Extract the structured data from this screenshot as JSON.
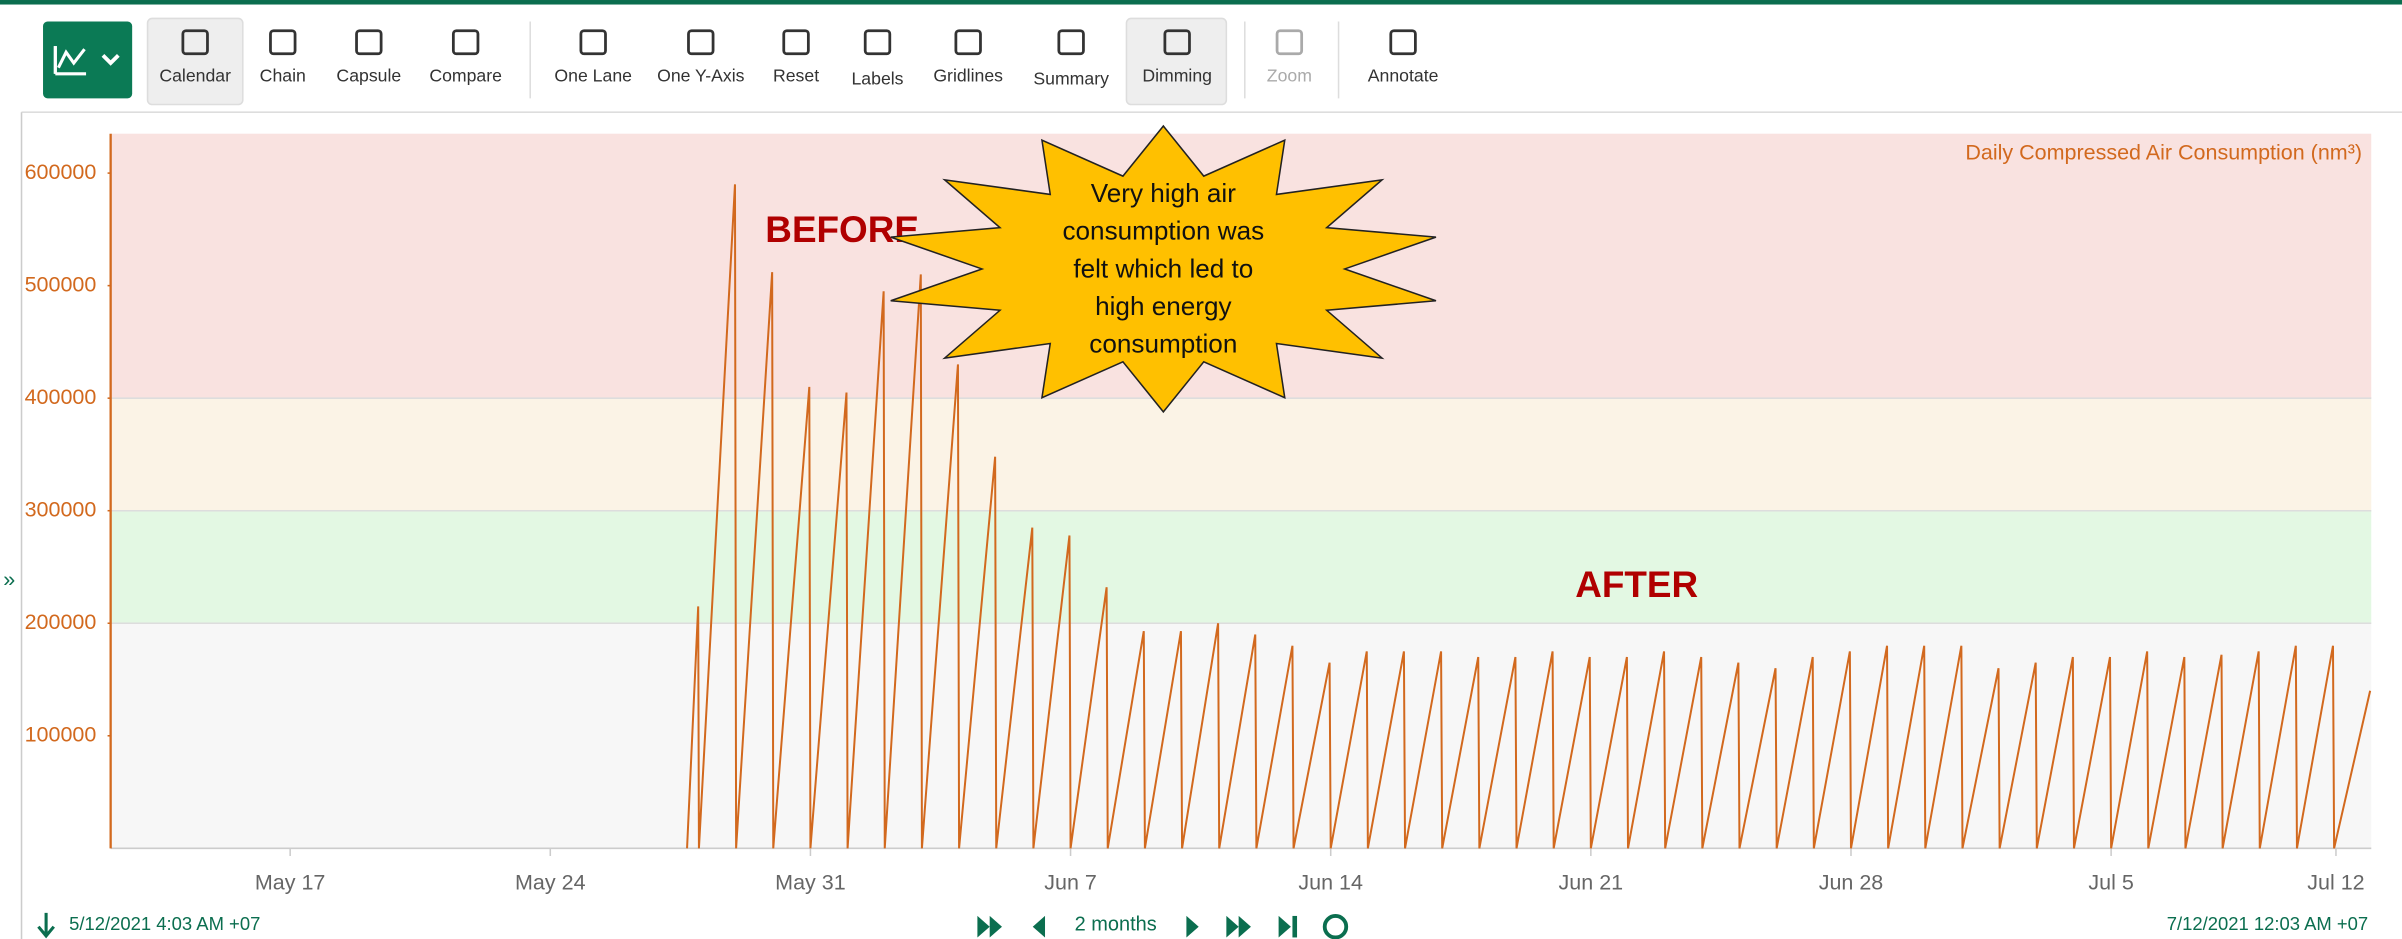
{
  "toolbar": {
    "buttons": [
      "Calendar",
      "Chain",
      "Capsule",
      "Compare",
      "One Lane",
      "One Y-Axis",
      "Reset",
      "Labels",
      "Gridlines",
      "Summary",
      "Dimming",
      "Zoom",
      "Annotate"
    ]
  },
  "chart_data": {
    "type": "line",
    "series": [
      {
        "name": "Daily Compressed Air Consumption (nm³)",
        "color": "#d2691e",
        "x": [
          27.68,
          27.98,
          28,
          28.97,
          29,
          29.97,
          30,
          30.97,
          31,
          31.97,
          32,
          32.97,
          33,
          33.97,
          34,
          34.97,
          35,
          35.97,
          36,
          36.97,
          37,
          37.97,
          38,
          38.97,
          39,
          39.97,
          40,
          40.97,
          41,
          41.97,
          42,
          42.97,
          43,
          43.97,
          44,
          44.97,
          45,
          45.97,
          46,
          46.97,
          47,
          47.97,
          48,
          48.97,
          49,
          49.97,
          50,
          50.97,
          51,
          51.97,
          52,
          52.97,
          53,
          53.97,
          54,
          54.97,
          55,
          55.97,
          56,
          56.97,
          57,
          57.97,
          58,
          58.97,
          59,
          59.97,
          60,
          60.97,
          61,
          61.97,
          62,
          62.97,
          63,
          63.97,
          64,
          64.97,
          65,
          65.97,
          66,
          66.97,
          67,
          67.97,
          68,
          68.97,
          69,
          69.97,
          70,
          70.97,
          71,
          71.97,
          72,
          72.97
        ],
        "values": [
          0,
          215000,
          0,
          590000,
          0,
          512000,
          0,
          410000,
          0,
          405000,
          0,
          495000,
          0,
          510000,
          0,
          430000,
          0,
          348000,
          0,
          285000,
          0,
          278000,
          0,
          232000,
          0,
          193000,
          0,
          193000,
          0,
          200000,
          0,
          190000,
          0,
          180000,
          0,
          165000,
          0,
          175000,
          0,
          175000,
          0,
          175000,
          0,
          170000,
          0,
          170000,
          0,
          175000,
          0,
          170000,
          0,
          170000,
          0,
          175000,
          0,
          170000,
          0,
          165000,
          0,
          160000,
          0,
          170000,
          0,
          175000,
          0,
          180000,
          0,
          180000,
          0,
          180000,
          0,
          160000,
          0,
          165000,
          0,
          170000,
          0,
          170000,
          0,
          175000,
          0,
          170000,
          0,
          172000,
          0,
          175000,
          0,
          180000,
          0,
          180000,
          0,
          140000
        ]
      }
    ],
    "xlim": [
      12.17,
      73.0
    ],
    "xticks": [
      {
        "value": 17,
        "label": "May 17"
      },
      {
        "value": 24,
        "label": "May 24"
      },
      {
        "value": 31,
        "label": "May 31"
      },
      {
        "value": 38,
        "label": "Jun 7"
      },
      {
        "value": 45,
        "label": "Jun 14"
      },
      {
        "value": 52,
        "label": "Jun 21"
      },
      {
        "value": 59,
        "label": "Jun 28"
      },
      {
        "value": 66,
        "label": "Jul 5"
      },
      {
        "value": 72.05,
        "label": "Jul 12"
      }
    ],
    "ylim": [
      0,
      635000
    ],
    "yticks": [
      100000,
      200000,
      300000,
      400000,
      500000,
      600000
    ],
    "grid": false,
    "bands": [
      {
        "from": 0,
        "to": 200000,
        "color": "#f7f7f7"
      },
      {
        "from": 200000,
        "to": 300000,
        "color": "#e3f8e3"
      },
      {
        "from": 300000,
        "to": 400000,
        "color": "#fbf3e6"
      },
      {
        "from": 400000,
        "to": 635000,
        "color": "#f9e2e0"
      }
    ],
    "annotations": {
      "before": "BEFORE",
      "after": "AFTER",
      "callout_lines": [
        "Very high air",
        "consumption was",
        "felt which led to",
        "high energy",
        "consumption"
      ]
    }
  },
  "footer": {
    "start": "5/12/2021 4:03 AM +07",
    "range": "2 months",
    "end": "7/12/2021 12:03 AM +07"
  }
}
